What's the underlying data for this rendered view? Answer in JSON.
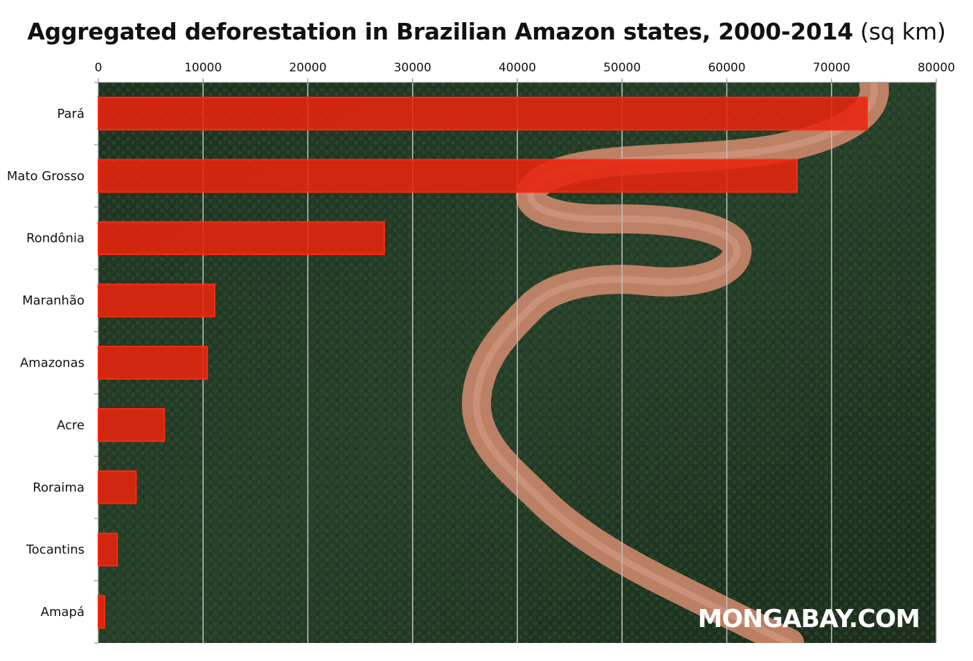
{
  "chart_data": {
    "type": "bar",
    "orientation": "horizontal",
    "title": "Aggregated deforestation in Brazilian Amazon states, 2000-2014",
    "title_unit": "(sq km)",
    "categories": [
      "Pará",
      "Mato Grosso",
      "Rondônia",
      "Maranhão",
      "Amazonas",
      "Acre",
      "Roraima",
      "Tocantins",
      "Amapá"
    ],
    "values": [
      73400,
      66700,
      27300,
      11100,
      10400,
      6300,
      3600,
      1800,
      600
    ],
    "xlim": [
      0,
      80000
    ],
    "xticks": [
      "0",
      "10000",
      "20000",
      "30000",
      "40000",
      "50000",
      "60000",
      "70000",
      "80000"
    ],
    "x_axis_position": "top",
    "grid": true,
    "bar_color": "#e8240e",
    "watermark": "MONGABAY.COM"
  }
}
